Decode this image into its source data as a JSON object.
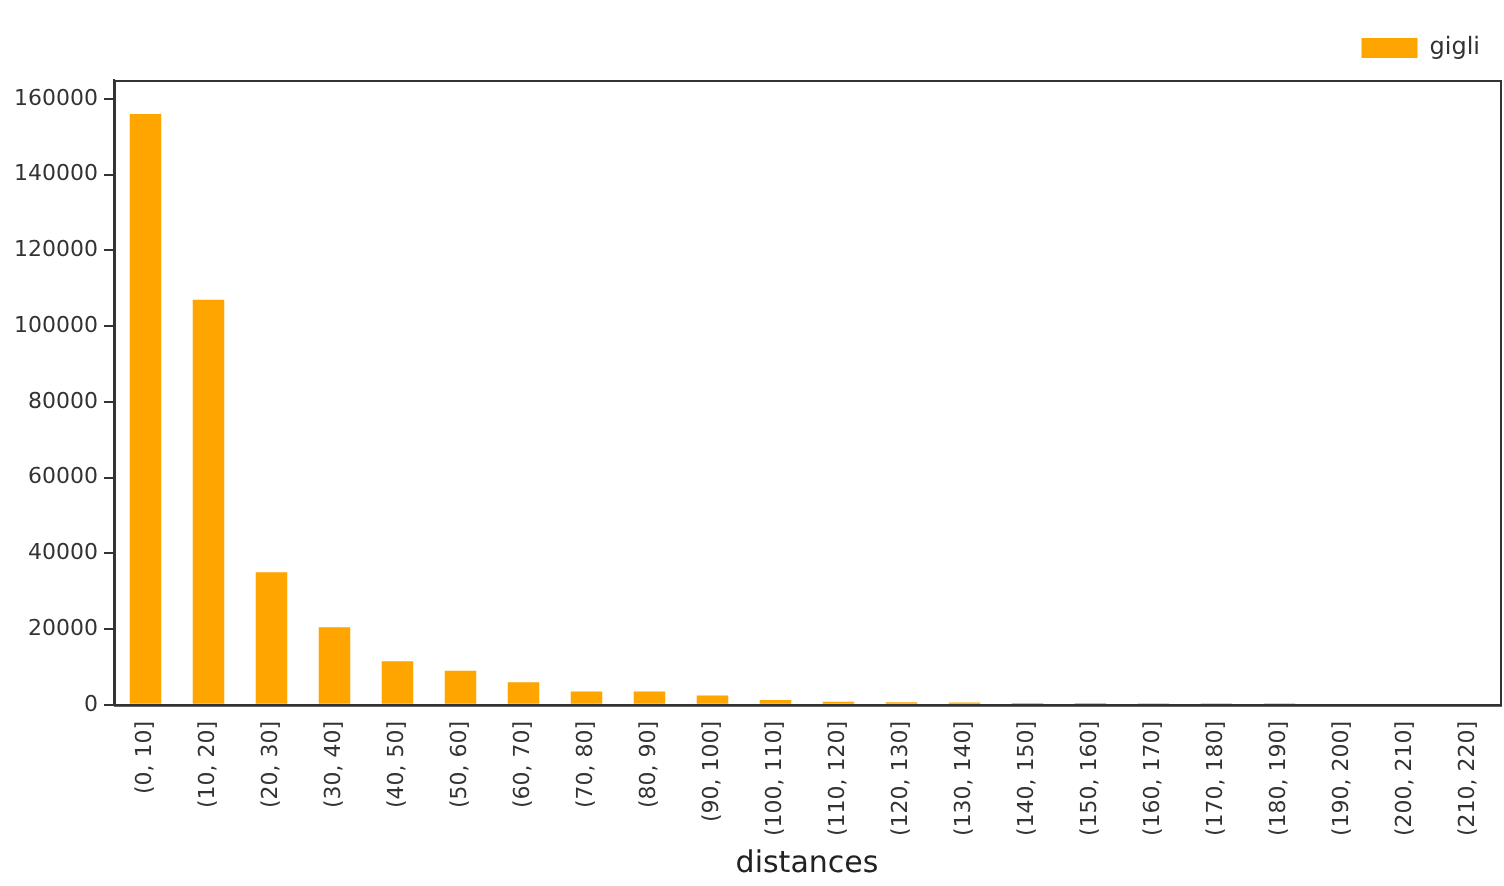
{
  "chart_data": {
    "type": "bar",
    "xlabel": "distances",
    "categories": [
      "(0, 10]",
      "(10, 20]",
      "(20, 30]",
      "(30, 40]",
      "(40, 50]",
      "(50, 60]",
      "(60, 70]",
      "(70, 80]",
      "(80, 90]",
      "(90, 100]",
      "(100, 110]",
      "(110, 120]",
      "(120, 130]",
      "(130, 140]",
      "(140, 150]",
      "(150, 160]",
      "(160, 170]",
      "(170, 180]",
      "(180, 190]",
      "(190, 200]",
      "(200, 210]",
      "(210, 220]"
    ],
    "series": [
      {
        "name": "gigli",
        "color": "#ffa500",
        "values": [
          156000,
          107000,
          35000,
          20500,
          11500,
          9000,
          6000,
          3500,
          3500,
          2500,
          1300,
          800,
          700,
          600,
          500,
          500,
          400,
          400,
          400,
          300,
          300,
          300
        ]
      }
    ],
    "ylim": [
      0,
      165000
    ],
    "yticks": [
      0,
      20000,
      40000,
      60000,
      80000,
      100000,
      120000,
      140000,
      160000
    ],
    "grid": false,
    "legend": "top right"
  }
}
